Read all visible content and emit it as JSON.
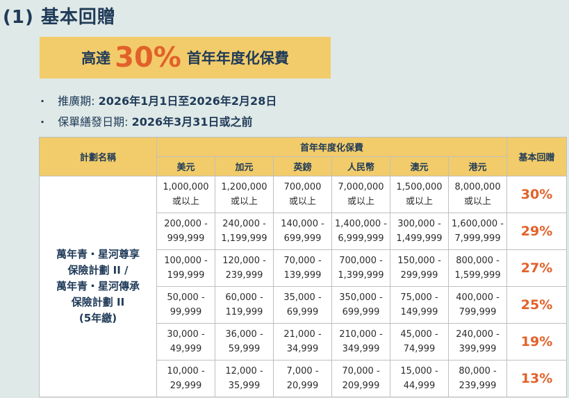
{
  "page": {
    "heading": "(1) 基本回贈",
    "banner": {
      "prefix": "高達",
      "percent": "30%",
      "suffix": "首年年度化保費"
    },
    "promo_period": {
      "label": "推廣期:",
      "value": "2026年1月1日至2026年2月28日"
    },
    "issue_date": {
      "label": "保單繕發日期:",
      "value": "2026年3月31日或之前"
    }
  },
  "table": {
    "plan_header": "計劃名稱",
    "premium_header": "首年年度化保費",
    "rebate_header": "基本回贈",
    "currencies": [
      "美元",
      "加元",
      "英鎊",
      "人民幣",
      "澳元",
      "港元"
    ],
    "plan_lines": [
      "萬年青・星河尊享",
      "保險計劃 II /",
      "萬年青・星河傳承",
      "保險計劃 II",
      "(5年繳)"
    ],
    "rows": [
      {
        "cells": [
          [
            "1,000,000",
            "或以上"
          ],
          [
            "1,200,000",
            "或以上"
          ],
          [
            "700,000",
            "或以上"
          ],
          [
            "7,000,000",
            "或以上"
          ],
          [
            "1,500,000",
            "或以上"
          ],
          [
            "8,000,000",
            "或以上"
          ]
        ],
        "rebate": "30%"
      },
      {
        "cells": [
          [
            "200,000 -",
            "999,999"
          ],
          [
            "240,000 -",
            "1,199,999"
          ],
          [
            "140,000 -",
            "699,999"
          ],
          [
            "1,400,000 -",
            "6,999,999"
          ],
          [
            "300,000 -",
            "1,499,999"
          ],
          [
            "1,600,000 -",
            "7,999,999"
          ]
        ],
        "rebate": "29%"
      },
      {
        "cells": [
          [
            "100,000 -",
            "199,999"
          ],
          [
            "120,000 -",
            "239,999"
          ],
          [
            "70,000 -",
            "139,999"
          ],
          [
            "700,000 -",
            "1,399,999"
          ],
          [
            "150,000 -",
            "299,999"
          ],
          [
            "800,000 -",
            "1,599,999"
          ]
        ],
        "rebate": "27%"
      },
      {
        "cells": [
          [
            "50,000 -",
            "99,999"
          ],
          [
            "60,000 -",
            "119,999"
          ],
          [
            "35,000 -",
            "69,999"
          ],
          [
            "350,000 -",
            "699,999"
          ],
          [
            "75,000 -",
            "149,999"
          ],
          [
            "400,000 -",
            "799,999"
          ]
        ],
        "rebate": "25%"
      },
      {
        "cells": [
          [
            "30,000 -",
            "49,999"
          ],
          [
            "36,000 -",
            "59,999"
          ],
          [
            "21,000 -",
            "34,999"
          ],
          [
            "210,000 -",
            "349,999"
          ],
          [
            "45,000 -",
            "74,999"
          ],
          [
            "240,000 -",
            "399,999"
          ]
        ],
        "rebate": "19%"
      },
      {
        "cells": [
          [
            "10,000 -",
            "29,999"
          ],
          [
            "12,000 -",
            "35,999"
          ],
          [
            "7,000 -",
            "20,999"
          ],
          [
            "70,000 -",
            "209,999"
          ],
          [
            "15,000 -",
            "44,999"
          ],
          [
            "80,000 -",
            "239,999"
          ]
        ],
        "rebate": "13%"
      }
    ]
  },
  "colors": {
    "background": "#dfe9e7",
    "accent_yellow": "#f2cc6a",
    "navy": "#1f3a58",
    "orange": "#e2612a"
  }
}
